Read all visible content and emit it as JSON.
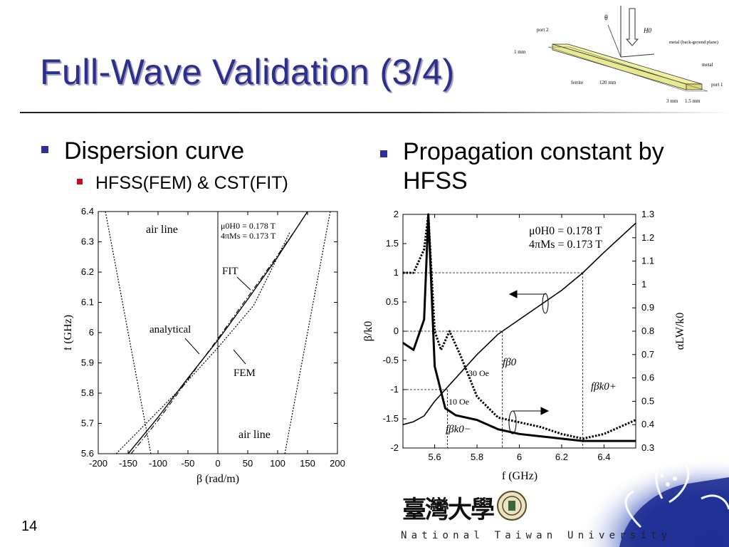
{
  "slide": {
    "title": "Full-Wave Validation (3/4)",
    "page_number": "14",
    "footer_text": "National Taiwan University",
    "logo_text": "臺灣大學",
    "colors": {
      "title": "#2c2f8c",
      "bullet_primary": "#2c2f9c",
      "bullet_secondary": "#c0101a",
      "flower_bg": "#1a2a8a"
    }
  },
  "bullets": {
    "left_main": "Dispersion curve",
    "left_sub": "HFSS(FEM) & CST(FIT)",
    "right_main": "Propagation constant by HFSS"
  },
  "structure_diagram": {
    "labels": {
      "port2": "port 2",
      "port1": "port 1",
      "h0": "H0",
      "theta": "θ",
      "metal_backing": "metal (back-ground plane)",
      "metal": "metal",
      "ferrite": "ferrite",
      "len": "120 mm",
      "thick": "1 mm",
      "width1": "3 mm",
      "width2": "1.5 mm"
    }
  },
  "chart_data": [
    {
      "type": "line",
      "xlabel": "β (rad/m)",
      "ylabel": "f (GHz)",
      "xlim": [
        -200,
        200
      ],
      "ylim": [
        5.6,
        6.4
      ],
      "xticks": [
        "-200",
        "-150",
        "-100",
        "-50",
        "0",
        "50",
        "100",
        "150",
        "200"
      ],
      "yticks": [
        "5.6",
        "5.7",
        "5.8",
        "5.9",
        "6",
        "6.1",
        "6.2",
        "6.3",
        "6.4"
      ],
      "legend_lines": [
        "μ0H0 = 0.178 T",
        "4πMs = 0.173 T"
      ],
      "annotations": [
        "air line",
        "air line",
        "FIT",
        "analytical",
        "FEM"
      ],
      "series": [
        {
          "name": "analytical",
          "style": "solid",
          "x": [
            -150,
            -100,
            -50,
            0,
            50,
            100,
            150
          ],
          "y": [
            5.6,
            5.72,
            5.85,
            5.975,
            6.11,
            6.25,
            6.4
          ]
        },
        {
          "name": "FIT",
          "style": "dashdot",
          "x": [
            -145,
            -100,
            -50,
            0,
            40,
            80,
            130
          ],
          "y": [
            5.6,
            5.71,
            5.845,
            5.98,
            6.09,
            6.2,
            6.34
          ]
        },
        {
          "name": "FEM",
          "style": "dotted",
          "x": [
            -170,
            -120,
            -60,
            0,
            60,
            120
          ],
          "y": [
            5.6,
            5.7,
            5.82,
            5.95,
            6.09,
            6.33
          ]
        },
        {
          "name": "air line left",
          "style": "dotted",
          "x": [
            -188,
            -112
          ],
          "y": [
            6.4,
            5.6
          ]
        },
        {
          "name": "air line right",
          "style": "dotted",
          "x": [
            112,
            188
          ],
          "y": [
            5.6,
            6.4
          ]
        }
      ]
    },
    {
      "type": "line",
      "xlabel": "f (GHz)",
      "ylabel_left": "β/k0",
      "ylabel_right": "αLW/k0",
      "xlim": [
        5.45,
        6.55
      ],
      "ylim_left": [
        -2,
        2
      ],
      "ylim_right": [
        0.3,
        1.3
      ],
      "xticks": [
        "5.6",
        "5.8",
        "6",
        "6.2",
        "6.4"
      ],
      "yticks_left": [
        "2",
        "1.5",
        "1",
        "0.5",
        "0",
        "-0.5",
        "-1",
        "-1.5",
        "-2"
      ],
      "yticks_right": [
        "1.3",
        "1.2",
        "1.1",
        "1",
        "0.9",
        "0.8",
        "0.7",
        "0.6",
        "0.5",
        "0.4",
        "0.3"
      ],
      "legend_lines": [
        "μ0H0 = 0.178 T",
        "4πMs = 0.173 T"
      ],
      "annotations": [
        "fβ0",
        "fβk0+",
        "fβk0−",
        "30 Oe",
        "10 Oe"
      ],
      "series": [
        {
          "name": "β/k0",
          "axis": "left",
          "style": "solid-thin",
          "x": [
            5.45,
            5.5,
            5.55,
            5.6,
            5.65,
            5.7,
            5.8,
            5.9,
            6.0,
            6.1,
            6.2,
            6.3,
            6.4,
            6.55
          ],
          "y": [
            -1.6,
            -1.55,
            -1.45,
            -1.2,
            -1.0,
            -0.8,
            -0.4,
            -0.05,
            0.2,
            0.45,
            0.7,
            1.0,
            1.35,
            1.85
          ]
        },
        {
          "name": "10 Oe",
          "axis": "right",
          "style": "solid-thick",
          "x": [
            5.45,
            5.5,
            5.55,
            5.57,
            5.6,
            5.65,
            5.7,
            5.8,
            5.9,
            6.0,
            6.1,
            6.2,
            6.3,
            6.4,
            6.55
          ],
          "y": [
            0.75,
            0.72,
            0.85,
            1.3,
            0.65,
            0.47,
            0.44,
            0.42,
            0.38,
            0.36,
            0.35,
            0.34,
            0.33,
            0.33,
            0.33
          ]
        },
        {
          "name": "30 Oe",
          "axis": "right",
          "style": "dotted-thick",
          "x": [
            5.45,
            5.5,
            5.55,
            5.57,
            5.6,
            5.63,
            5.67,
            5.72,
            5.8,
            5.9,
            6.0,
            6.1,
            6.2,
            6.3,
            6.4,
            6.55
          ],
          "y": [
            1.05,
            1.05,
            1.15,
            1.3,
            0.8,
            0.72,
            0.8,
            0.7,
            0.52,
            0.43,
            0.41,
            0.39,
            0.36,
            0.34,
            0.36,
            0.42
          ]
        }
      ],
      "markers": {
        "f_beta0": 5.92,
        "f_beta_k0plus": 6.3,
        "f_beta_k0minus": 5.66
      }
    }
  ]
}
